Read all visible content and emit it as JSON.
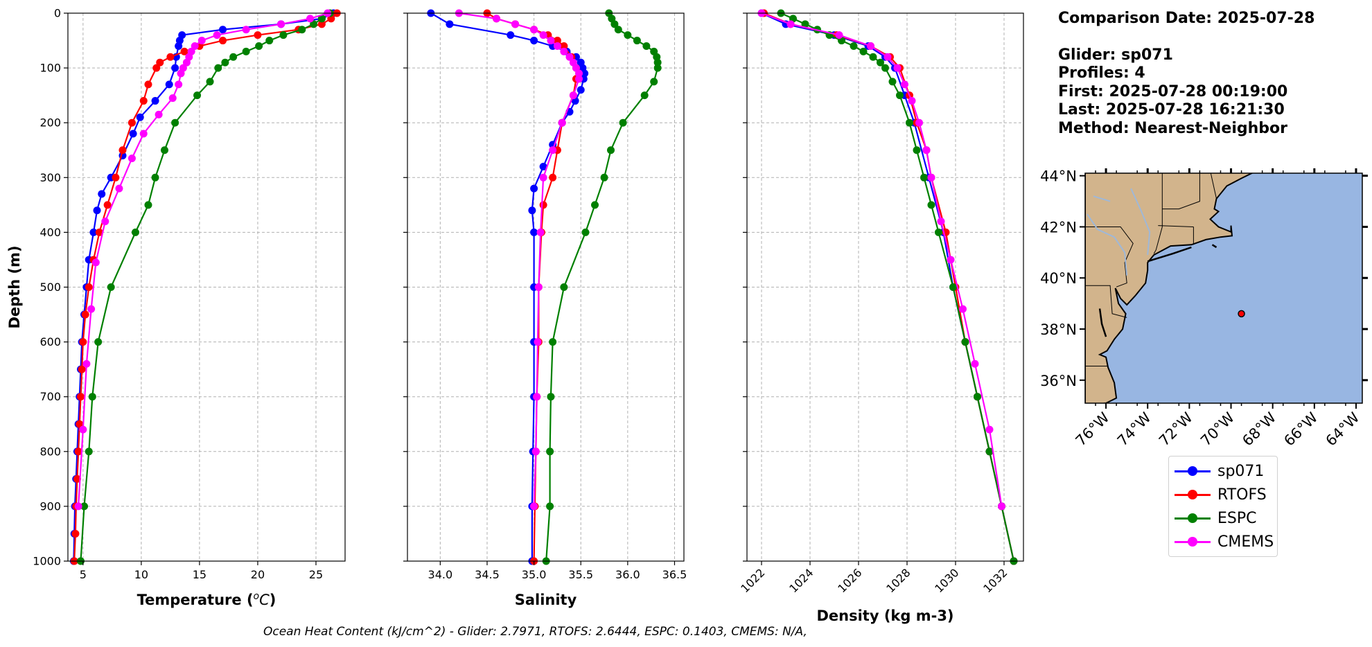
{
  "chart_data": [
    {
      "type": "line",
      "panel": "temperature",
      "xlabel": "Temperature ($^{o}C$)",
      "ylabel": "Depth (m)",
      "xlim": [
        3.7,
        27.5
      ],
      "ylim": [
        1000,
        0
      ],
      "xticks": [
        5,
        10,
        15,
        20,
        25
      ],
      "yticks": [
        0,
        100,
        200,
        300,
        400,
        500,
        600,
        700,
        800,
        900,
        1000
      ],
      "grid": true,
      "series": [
        {
          "name": "sp071",
          "color": "#0000ff",
          "marker": "circle",
          "depth": [
            0,
            10,
            20,
            30,
            40,
            50,
            60,
            80,
            100,
            130,
            160,
            190,
            220,
            260,
            300,
            330,
            360,
            400,
            450,
            500,
            550,
            600,
            650,
            700,
            750,
            800,
            850,
            900,
            950,
            1000
          ],
          "values": [
            26.5,
            25.5,
            22,
            17,
            13.5,
            13.3,
            13.2,
            13,
            12.9,
            12.4,
            11.2,
            9.9,
            9.3,
            8.4,
            7.4,
            6.6,
            6.2,
            5.9,
            5.5,
            5.3,
            5.1,
            4.9,
            4.8,
            4.7,
            4.6,
            4.5,
            4.4,
            4.3,
            4.25,
            4.2
          ]
        },
        {
          "name": "RTOFS",
          "color": "#ff0000",
          "marker": "circle",
          "depth": [
            0,
            10,
            20,
            30,
            40,
            50,
            60,
            70,
            80,
            90,
            100,
            130,
            160,
            200,
            250,
            300,
            350,
            400,
            450,
            500,
            550,
            600,
            650,
            700,
            750,
            800,
            850,
            900,
            950,
            1000
          ],
          "values": [
            26.8,
            26.3,
            25.5,
            23.5,
            20,
            17,
            15,
            13.7,
            12.5,
            11.6,
            11.3,
            10.6,
            10.2,
            9.2,
            8.4,
            7.8,
            7.1,
            6.4,
            5.9,
            5.5,
            5.2,
            5,
            4.9,
            4.8,
            4.7,
            4.6,
            4.5,
            4.4,
            4.35,
            4.25
          ]
        },
        {
          "name": "ESPC",
          "color": "#008000",
          "marker": "circle",
          "depth": [
            0,
            10,
            20,
            30,
            40,
            50,
            60,
            70,
            80,
            90,
            100,
            125,
            150,
            200,
            250,
            300,
            350,
            400,
            500,
            600,
            700,
            800,
            900,
            1000
          ],
          "values": [
            26.2,
            25.5,
            24.8,
            23.8,
            22.2,
            21,
            20.1,
            19,
            17.9,
            17.2,
            16.6,
            15.9,
            14.8,
            12.9,
            12,
            11.2,
            10.6,
            9.5,
            7.4,
            6.3,
            5.8,
            5.5,
            5.1,
            4.8
          ]
        },
        {
          "name": "CMEMS",
          "color": "#ff00ff",
          "marker": "circle",
          "depth": [
            0,
            10,
            20,
            30,
            40,
            50,
            60,
            70,
            80,
            90,
            100,
            110,
            130,
            155,
            185,
            220,
            265,
            320,
            380,
            455,
            540,
            640,
            760,
            900
          ],
          "values": [
            26,
            24.5,
            22,
            19,
            16.5,
            15.2,
            14.6,
            14.3,
            14.1,
            13.9,
            13.6,
            13.4,
            13.2,
            12.7,
            11.5,
            10.2,
            9.2,
            8.1,
            6.9,
            6.1,
            5.7,
            5.3,
            5,
            4.6
          ]
        }
      ]
    },
    {
      "type": "line",
      "panel": "salinity",
      "xlabel": "Salinity",
      "xlim": [
        33.65,
        36.6
      ],
      "ylim": [
        1000,
        0
      ],
      "xticks": [
        34.0,
        34.5,
        35.0,
        35.5,
        36.0,
        36.5
      ],
      "grid": true,
      "series": [
        {
          "name": "sp071",
          "color": "#0000ff",
          "marker": "circle",
          "depth": [
            0,
            20,
            40,
            50,
            60,
            70,
            80,
            90,
            100,
            110,
            120,
            140,
            160,
            180,
            200,
            240,
            280,
            320,
            360,
            400,
            500,
            600,
            700,
            800,
            900,
            1000
          ],
          "values": [
            33.9,
            34.1,
            34.75,
            35.0,
            35.2,
            35.35,
            35.45,
            35.5,
            35.52,
            35.54,
            35.53,
            35.5,
            35.44,
            35.38,
            35.3,
            35.2,
            35.1,
            35.0,
            34.98,
            35.0,
            35.0,
            35.0,
            35.0,
            34.99,
            34.98,
            34.98
          ]
        },
        {
          "name": "RTOFS",
          "color": "#ff0000",
          "marker": "circle",
          "depth": [
            0,
            10,
            20,
            30,
            40,
            50,
            60,
            80,
            100,
            120,
            150,
            200,
            250,
            300,
            350,
            400,
            500,
            600,
            700,
            800,
            900,
            1000
          ],
          "values": [
            34.5,
            34.6,
            34.8,
            35.0,
            35.15,
            35.25,
            35.32,
            35.4,
            35.45,
            35.45,
            35.42,
            35.3,
            35.25,
            35.2,
            35.1,
            35.08,
            35.05,
            35.05,
            35.03,
            35.02,
            35.01,
            35.0
          ]
        },
        {
          "name": "ESPC",
          "color": "#008000",
          "marker": "circle",
          "depth": [
            0,
            10,
            20,
            30,
            40,
            50,
            60,
            70,
            80,
            90,
            100,
            125,
            150,
            200,
            250,
            300,
            350,
            400,
            500,
            600,
            700,
            800,
            900,
            1000
          ],
          "values": [
            35.8,
            35.83,
            35.86,
            35.9,
            36.0,
            36.1,
            36.2,
            36.28,
            36.31,
            36.32,
            36.32,
            36.28,
            36.18,
            35.95,
            35.82,
            35.75,
            35.65,
            35.55,
            35.32,
            35.2,
            35.18,
            35.17,
            35.17,
            35.13
          ]
        },
        {
          "name": "CMEMS",
          "color": "#ff00ff",
          "marker": "circle",
          "depth": [
            0,
            10,
            20,
            30,
            40,
            50,
            60,
            70,
            80,
            90,
            100,
            110,
            120,
            150,
            200,
            250,
            300,
            400,
            500,
            600,
            700,
            800,
            900
          ],
          "values": [
            34.2,
            34.6,
            34.8,
            35.0,
            35.1,
            35.18,
            35.25,
            35.32,
            35.38,
            35.42,
            35.45,
            35.48,
            35.48,
            35.42,
            35.3,
            35.2,
            35.1,
            35.07,
            35.05,
            35.04,
            35.03,
            35.02,
            35.0
          ]
        }
      ]
    },
    {
      "type": "line",
      "panel": "density",
      "xlabel": "Density (kg m-3)",
      "xlim": [
        1021.4,
        1032.8
      ],
      "ylim": [
        1000,
        0
      ],
      "xticks": [
        1022,
        1024,
        1026,
        1028,
        1030,
        1032
      ],
      "grid": true,
      "series": [
        {
          "name": "sp071",
          "color": "#0000ff",
          "marker": "circle",
          "depth": [
            0,
            20,
            40,
            60,
            80,
            100,
            150,
            200,
            300,
            400,
            500,
            600,
            700,
            800,
            900,
            1000
          ],
          "values": [
            1022.0,
            1023.0,
            1025.0,
            1026.4,
            1027.1,
            1027.5,
            1027.9,
            1028.3,
            1028.9,
            1029.5,
            1029.9,
            1030.4,
            1030.9,
            1031.4,
            1031.9,
            1032.4
          ]
        },
        {
          "name": "RTOFS",
          "color": "#ff0000",
          "marker": "circle",
          "depth": [
            0,
            20,
            40,
            60,
            80,
            100,
            150,
            200,
            250,
            300,
            400,
            500,
            600,
            700,
            800,
            900,
            1000
          ],
          "values": [
            1022.1,
            1023.2,
            1025.1,
            1026.5,
            1027.3,
            1027.7,
            1028.1,
            1028.4,
            1028.8,
            1029.0,
            1029.6,
            1030.0,
            1030.4,
            1030.9,
            1031.4,
            1031.9,
            1032.4
          ]
        },
        {
          "name": "ESPC",
          "color": "#008000",
          "marker": "circle",
          "depth": [
            0,
            10,
            20,
            30,
            40,
            50,
            60,
            70,
            80,
            90,
            100,
            125,
            150,
            200,
            250,
            300,
            350,
            400,
            500,
            600,
            700,
            800,
            900,
            1000
          ],
          "values": [
            1022.8,
            1023.3,
            1023.8,
            1024.3,
            1024.8,
            1025.3,
            1025.8,
            1026.2,
            1026.6,
            1026.9,
            1027.1,
            1027.4,
            1027.7,
            1028.1,
            1028.4,
            1028.7,
            1029.0,
            1029.3,
            1029.9,
            1030.4,
            1030.9,
            1031.4,
            1031.9,
            1032.4
          ]
        },
        {
          "name": "CMEMS",
          "color": "#ff00ff",
          "marker": "circle",
          "depth": [
            0,
            20,
            40,
            60,
            80,
            100,
            130,
            160,
            200,
            250,
            300,
            380,
            450,
            540,
            640,
            760,
            900
          ],
          "values": [
            1022.0,
            1023.2,
            1025.2,
            1026.5,
            1027.2,
            1027.6,
            1027.9,
            1028.2,
            1028.5,
            1028.8,
            1029.0,
            1029.4,
            1029.8,
            1030.3,
            1030.8,
            1031.4,
            1031.9
          ]
        }
      ]
    }
  ],
  "info": {
    "date_line": "Comparison Date: 2025-07-28",
    "glider_line": "Glider: sp071",
    "profiles_line": "Profiles: 4",
    "first_line": "First: 2025-07-28 00:19:00",
    "last_line": "Last: 2025-07-28 16:21:30",
    "method_line": "Method: Nearest-Neighbor"
  },
  "map": {
    "lat_ticks": [
      "44°N",
      "42°N",
      "40°N",
      "38°N",
      "36°N"
    ],
    "lat_values": [
      44,
      42,
      40,
      38,
      36
    ],
    "lon_ticks": [
      "76°W",
      "74°W",
      "72°W",
      "70°W",
      "68°W",
      "66°W",
      "64°W"
    ],
    "lon_values": [
      -76,
      -74,
      -72,
      -70,
      -68,
      -66,
      -64
    ],
    "lat_range": [
      35.1,
      44.1
    ],
    "lon_range": [
      -77.0,
      -63.7
    ],
    "glider_position": {
      "lat": 38.6,
      "lon": -69.5
    },
    "land_color": "#d2b48c",
    "ocean_color": "#98b6e2"
  },
  "legend": {
    "items": [
      {
        "label": "sp071",
        "color": "#0000ff"
      },
      {
        "label": "RTOFS",
        "color": "#ff0000"
      },
      {
        "label": "ESPC",
        "color": "#008000"
      },
      {
        "label": "CMEMS",
        "color": "#ff00ff"
      }
    ]
  },
  "footer": "Ocean Heat Content (kJ/cm^2) - Glider: 2.7971,  RTOFS: 2.6444,  ESPC: 0.1403,  CMEMS: N/A,"
}
